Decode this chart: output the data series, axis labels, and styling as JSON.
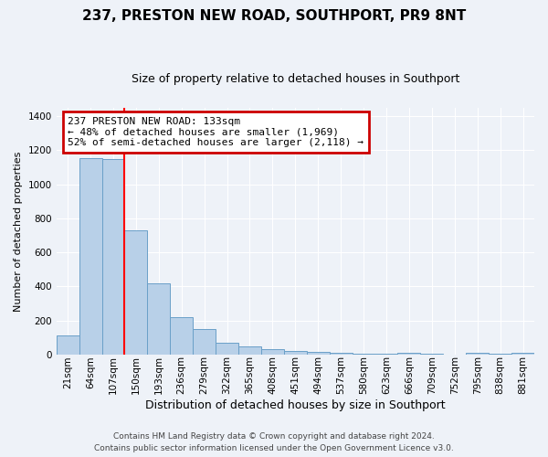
{
  "title": "237, PRESTON NEW ROAD, SOUTHPORT, PR9 8NT",
  "subtitle": "Size of property relative to detached houses in Southport",
  "xlabel": "Distribution of detached houses by size in Southport",
  "ylabel": "Number of detached properties",
  "bar_color": "#b8d0e8",
  "bar_edge_color": "#6aa0c8",
  "bin_labels": [
    "21sqm",
    "64sqm",
    "107sqm",
    "150sqm",
    "193sqm",
    "236sqm",
    "279sqm",
    "322sqm",
    "365sqm",
    "408sqm",
    "451sqm",
    "494sqm",
    "537sqm",
    "580sqm",
    "623sqm",
    "666sqm",
    "709sqm",
    "752sqm",
    "795sqm",
    "838sqm",
    "881sqm"
  ],
  "bar_heights": [
    110,
    1155,
    1150,
    730,
    420,
    220,
    150,
    70,
    50,
    30,
    20,
    15,
    10,
    5,
    5,
    10,
    5,
    0,
    10,
    5,
    10
  ],
  "red_line_x": 2.5,
  "annotation_text": "237 PRESTON NEW ROAD: 133sqm\n← 48% of detached houses are smaller (1,969)\n52% of semi-detached houses are larger (2,118) →",
  "annotation_box_color": "white",
  "annotation_box_edge_color": "#cc0000",
  "ylim": [
    0,
    1450
  ],
  "yticks": [
    0,
    200,
    400,
    600,
    800,
    1000,
    1200,
    1400
  ],
  "footer_line1": "Contains HM Land Registry data © Crown copyright and database right 2024.",
  "footer_line2": "Contains public sector information licensed under the Open Government Licence v3.0.",
  "background_color": "#eef2f8",
  "grid_color": "#ffffff",
  "title_fontsize": 11,
  "subtitle_fontsize": 9,
  "ylabel_fontsize": 8,
  "xlabel_fontsize": 9,
  "tick_fontsize": 7.5,
  "footer_fontsize": 6.5
}
